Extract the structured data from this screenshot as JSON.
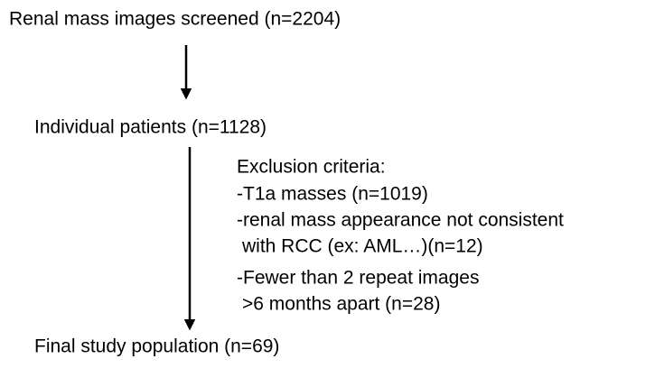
{
  "nodes": [
    {
      "label": "Renal mass images screened (n=2204)"
    },
    {
      "label": "Individual patients (n=1128)"
    },
    {
      "label": "Final study population (n=69)"
    }
  ],
  "exclusion": {
    "title": "Exclusion criteria:",
    "lines": [
      "-T1a masses (n=1019)",
      "-renal mass appearance not consistent",
      "with RCC (ex: AML…)(n=12)",
      "-Fewer than 2 repeat images",
      ">6 months apart (n=28)"
    ]
  }
}
